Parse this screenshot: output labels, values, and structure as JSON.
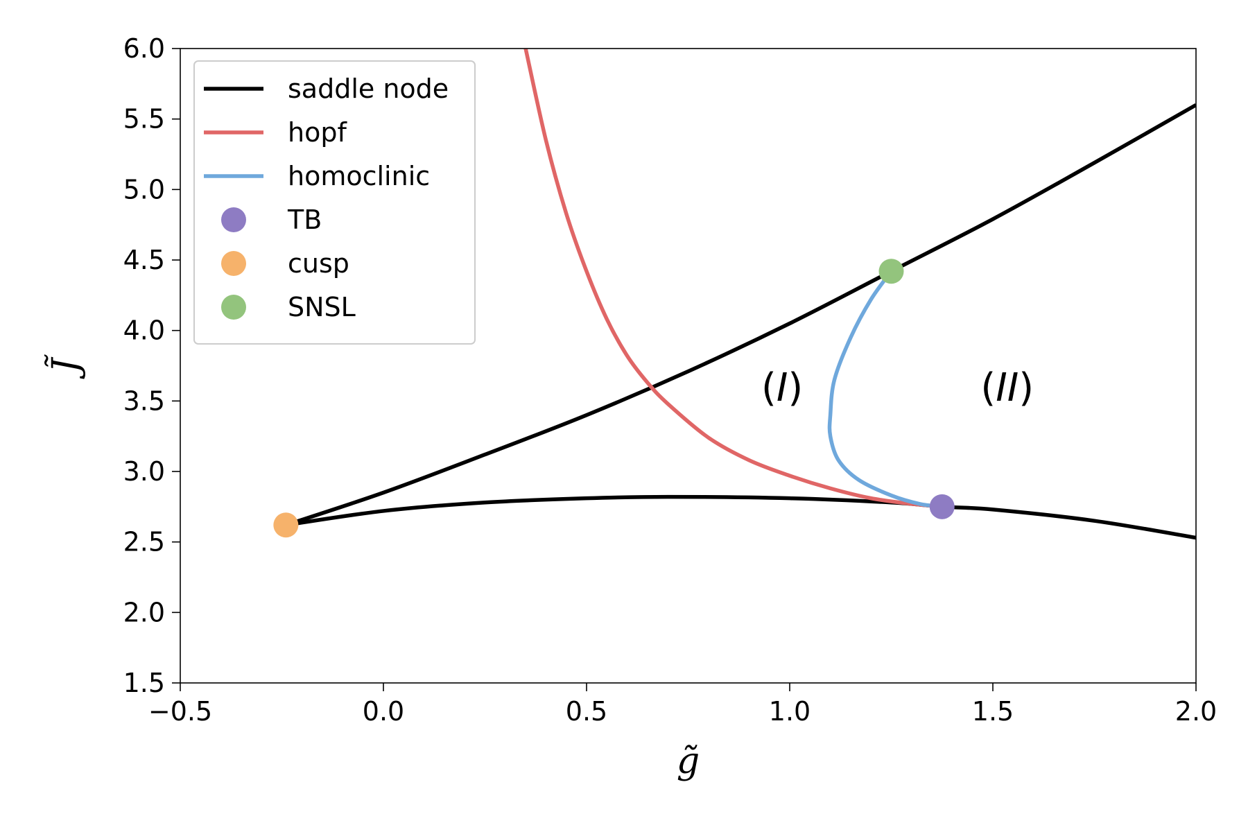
{
  "chart_data": {
    "type": "line",
    "xlabel": "g̃",
    "ylabel": "J̃",
    "xlim": [
      -0.5,
      2.0
    ],
    "ylim": [
      1.5,
      6.0
    ],
    "x_ticks": [
      "−0.5",
      "0.0",
      "0.5",
      "1.0",
      "1.5",
      "2.0"
    ],
    "y_ticks": [
      "1.5",
      "2.0",
      "2.5",
      "3.0",
      "3.5",
      "4.0",
      "4.5",
      "5.0",
      "5.5",
      "6.0"
    ],
    "grid": false,
    "legend_position": "top-left",
    "colors": {
      "saddle_node": "#000000",
      "hopf": "#e06666",
      "homoclinic": "#6fa8dc",
      "TB": "#8e7cc3",
      "cusp": "#f6b26b",
      "SNSL": "#93c47d"
    },
    "series": [
      {
        "name": "saddle node",
        "kind": "line",
        "segments": [
          [
            [
              -0.24,
              2.62
            ],
            [
              0.0,
              2.85
            ],
            [
              0.25,
              3.12
            ],
            [
              0.5,
              3.4
            ],
            [
              0.75,
              3.71
            ],
            [
              1.0,
              4.05
            ],
            [
              1.25,
              4.42
            ],
            [
              1.5,
              4.79
            ],
            [
              1.75,
              5.19
            ],
            [
              2.0,
              5.6
            ]
          ],
          [
            [
              -0.24,
              2.62
            ],
            [
              0.0,
              2.72
            ],
            [
              0.25,
              2.78
            ],
            [
              0.5,
              2.81
            ],
            [
              0.7,
              2.82
            ],
            [
              1.0,
              2.81
            ],
            [
              1.25,
              2.78
            ],
            [
              1.375,
              2.75
            ],
            [
              1.5,
              2.73
            ],
            [
              1.75,
              2.65
            ],
            [
              2.0,
              2.53
            ]
          ]
        ]
      },
      {
        "name": "hopf",
        "kind": "line",
        "points": [
          [
            0.35,
            6.0
          ],
          [
            0.4,
            5.35
          ],
          [
            0.45,
            4.83
          ],
          [
            0.5,
            4.42
          ],
          [
            0.55,
            4.08
          ],
          [
            0.6,
            3.82
          ],
          [
            0.65,
            3.63
          ],
          [
            0.7,
            3.48
          ],
          [
            0.8,
            3.24
          ],
          [
            0.9,
            3.08
          ],
          [
            1.0,
            2.97
          ],
          [
            1.1,
            2.88
          ],
          [
            1.2,
            2.81
          ],
          [
            1.3,
            2.77
          ],
          [
            1.375,
            2.75
          ]
        ]
      },
      {
        "name": "homoclinic",
        "kind": "line",
        "points": [
          [
            1.25,
            4.42
          ],
          [
            1.2,
            4.22
          ],
          [
            1.15,
            3.95
          ],
          [
            1.11,
            3.65
          ],
          [
            1.1,
            3.4
          ],
          [
            1.1,
            3.25
          ],
          [
            1.12,
            3.08
          ],
          [
            1.17,
            2.94
          ],
          [
            1.25,
            2.83
          ],
          [
            1.32,
            2.77
          ],
          [
            1.375,
            2.75
          ]
        ]
      },
      {
        "name": "TB",
        "kind": "marker",
        "points": [
          [
            1.375,
            2.75
          ]
        ]
      },
      {
        "name": "cusp",
        "kind": "marker",
        "points": [
          [
            -0.24,
            2.62
          ]
        ]
      },
      {
        "name": "SNSL",
        "kind": "marker",
        "points": [
          [
            1.25,
            4.42
          ]
        ]
      }
    ],
    "annotations": [
      {
        "text": "(",
        "italic_text": "I",
        "close": ")",
        "x": 0.93,
        "y": 3.6
      },
      {
        "text": "(",
        "italic_text": "II",
        "close": ")",
        "x": 1.47,
        "y": 3.6
      }
    ]
  }
}
